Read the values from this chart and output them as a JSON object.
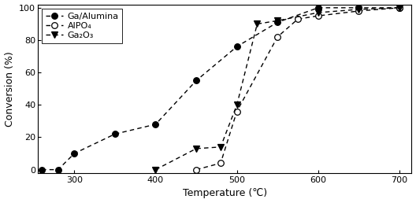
{
  "title": "",
  "xlabel": "Temperature (℃)",
  "ylabel": "Conversion (%)",
  "xlim": [
    255,
    715
  ],
  "ylim": [
    -2,
    102
  ],
  "xticks": [
    300,
    400,
    500,
    600,
    700
  ],
  "yticks": [
    0,
    20,
    40,
    60,
    80,
    100
  ],
  "series": [
    {
      "label": "Ga/Alumina",
      "x": [
        260,
        280,
        300,
        350,
        400,
        450,
        500,
        550,
        600,
        650,
        700
      ],
      "y": [
        0,
        0,
        10,
        22,
        28,
        55,
        76,
        91,
        100,
        100,
        100
      ],
      "marker": "o",
      "markerfacecolor": "black",
      "markeredgecolor": "black",
      "markersize": 5.5,
      "linestyle": "--",
      "linecolor": "black",
      "linewidth": 1.0
    },
    {
      "label": "AlPO₄",
      "x": [
        450,
        480,
        500,
        550,
        575,
        600,
        650,
        700
      ],
      "y": [
        0,
        4,
        36,
        82,
        93,
        95,
        98,
        100
      ],
      "marker": "o",
      "markerfacecolor": "white",
      "markeredgecolor": "black",
      "markersize": 5.5,
      "linestyle": "--",
      "linecolor": "black",
      "linewidth": 1.0
    },
    {
      "label": "Ga₂O₃",
      "x": [
        400,
        450,
        480,
        500,
        525,
        550,
        600,
        650,
        700
      ],
      "y": [
        0,
        13,
        14,
        40,
        90,
        92,
        97,
        99,
        100
      ],
      "marker": "v",
      "markerfacecolor": "black",
      "markeredgecolor": "black",
      "markersize": 5.5,
      "linestyle": "--",
      "linecolor": "black",
      "linewidth": 1.0
    }
  ],
  "legend_loc": "upper left",
  "background_color": "white",
  "fontsize_label": 9,
  "fontsize_tick": 8,
  "fontsize_legend": 8
}
